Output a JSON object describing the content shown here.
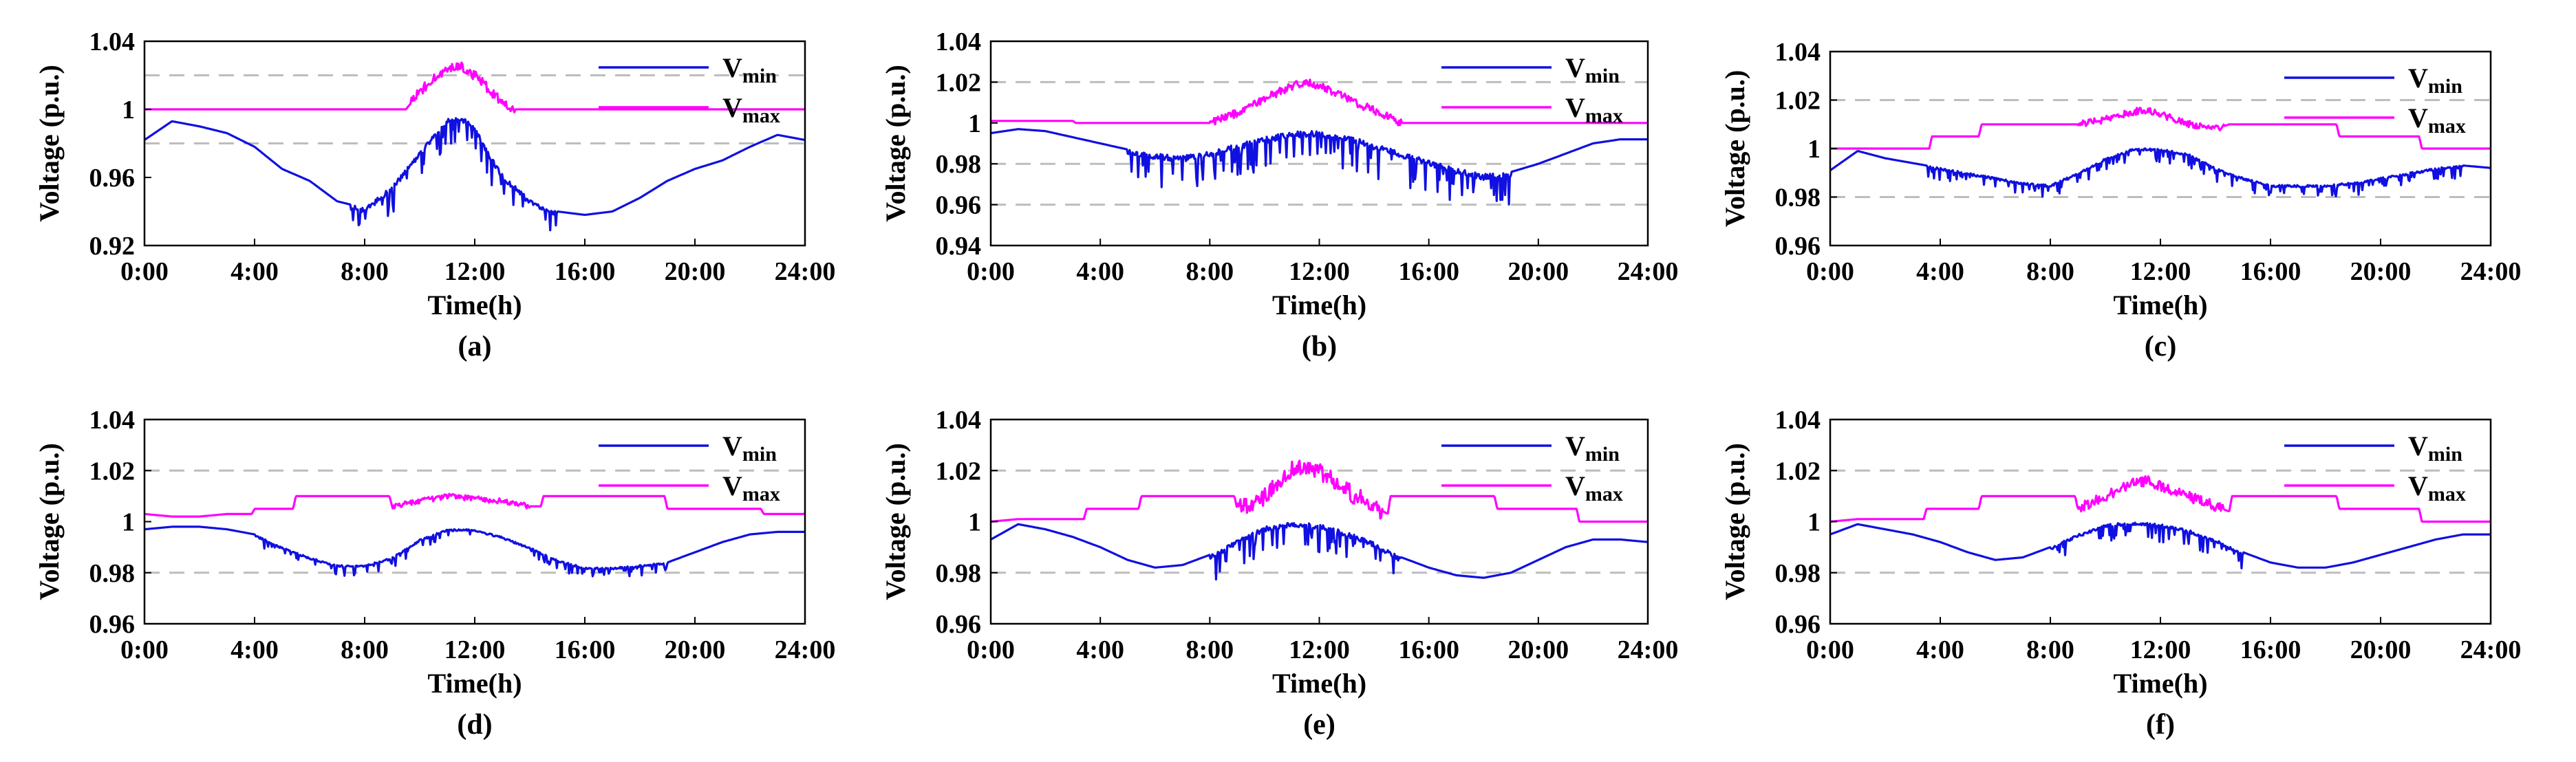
{
  "figure": {
    "series_colors": {
      "vmin": "#1010e0",
      "vmax": "#ff00ff",
      "ref": "#bdbdbd"
    }
  },
  "chart_data": [
    {
      "id": "a",
      "type": "line",
      "label": "(a)",
      "xlabel": "Time(h)",
      "ylabel": "Voltage (p.u.)",
      "xticks": [
        "0:00",
        "4:00",
        "8:00",
        "12:00",
        "16:00",
        "20:00",
        "24:00"
      ],
      "yticks": [
        "0.92",
        "0.96",
        "1",
        "1.04"
      ],
      "ytick_values": [
        0.92,
        0.96,
        1.0,
        1.04
      ],
      "ylim": [
        0.92,
        1.04
      ],
      "xlim": [
        0,
        24
      ],
      "ref_lines": [
        0.98,
        1.02
      ],
      "legend": [
        {
          "name": "V",
          "sub": "min"
        },
        {
          "name": "V",
          "sub": "max"
        }
      ],
      "series": [
        {
          "name": "Vmin",
          "x": [
            0,
            1,
            2,
            3,
            4,
            5,
            6,
            7,
            8,
            9,
            10,
            10.5,
            11,
            11.5,
            12,
            12.5,
            13,
            14,
            15,
            16,
            17,
            18,
            19,
            20,
            21,
            22,
            23,
            24
          ],
          "y": [
            0.982,
            0.993,
            0.99,
            0.986,
            0.978,
            0.965,
            0.958,
            0.946,
            0.942,
            0.955,
            0.975,
            0.985,
            0.995,
            0.996,
            0.99,
            0.975,
            0.962,
            0.947,
            0.94,
            0.938,
            0.94,
            0.948,
            0.958,
            0.965,
            0.97,
            0.978,
            0.985,
            0.982
          ],
          "noise": 0.012,
          "noise_range": [
            7.5,
            15
          ]
        },
        {
          "name": "Vmax",
          "x": [
            0,
            9.5,
            10,
            10.5,
            11,
            11.5,
            12,
            12.5,
            13,
            13.5,
            24
          ],
          "y": [
            1.0,
            1.0,
            1.01,
            1.018,
            1.023,
            1.025,
            1.02,
            1.012,
            1.004,
            1.0,
            1.0
          ],
          "noise": 0.006,
          "noise_range": [
            9.7,
            13.5
          ]
        }
      ]
    },
    {
      "id": "b",
      "type": "line",
      "label": "(b)",
      "xlabel": "Time(h)",
      "ylabel": "Voltage (p.u.)",
      "xticks": [
        "0:00",
        "4:00",
        "8:00",
        "12:00",
        "16:00",
        "20:00",
        "24:00"
      ],
      "yticks": [
        "0.94",
        "0.96",
        "0.98",
        "1",
        "1.02",
        "1.04"
      ],
      "ytick_values": [
        0.94,
        0.96,
        0.98,
        1.0,
        1.02,
        1.04
      ],
      "ylim": [
        0.94,
        1.04
      ],
      "xlim": [
        0,
        24
      ],
      "ref_lines": [
        0.96,
        0.98,
        1.02
      ],
      "legend": [
        {
          "name": "V",
          "sub": "min"
        },
        {
          "name": "V",
          "sub": "max"
        }
      ],
      "series": [
        {
          "name": "Vmin",
          "x": [
            0,
            1,
            2,
            3,
            4,
            5,
            6,
            7,
            8,
            9,
            10,
            11,
            12,
            13,
            14,
            15,
            16,
            17,
            18,
            19,
            20,
            21,
            22,
            23,
            24
          ],
          "y": [
            0.995,
            0.997,
            0.996,
            0.993,
            0.99,
            0.987,
            0.985,
            0.984,
            0.986,
            0.99,
            0.993,
            0.996,
            0.996,
            0.994,
            0.99,
            0.986,
            0.982,
            0.978,
            0.975,
            0.976,
            0.98,
            0.985,
            0.99,
            0.992,
            0.992
          ],
          "noise": 0.012,
          "noise_range": [
            5,
            19
          ]
        },
        {
          "name": "Vmax",
          "x": [
            0,
            3,
            3.1,
            8,
            9,
            10,
            11,
            11.5,
            12,
            13,
            14,
            15,
            15.1,
            24
          ],
          "y": [
            1.001,
            1.001,
            1.0,
            1.0,
            1.005,
            1.012,
            1.018,
            1.02,
            1.018,
            1.012,
            1.006,
            1.0,
            1.0,
            1.0
          ],
          "noise": 0.004,
          "noise_range": [
            8,
            15
          ]
        }
      ]
    },
    {
      "id": "c",
      "type": "line",
      "label": "(c)",
      "xlabel": "Time(h)",
      "ylabel": "Voltage (p.u.)",
      "xticks": [
        "0:00",
        "4:00",
        "8:00",
        "12:00",
        "16:00",
        "20:00",
        "24:00"
      ],
      "yticks": [
        "0.96",
        "0.98",
        "1",
        "1.02",
        "1.04"
      ],
      "ytick_values": [
        0.96,
        0.98,
        1.0,
        1.02,
        1.04
      ],
      "ylim": [
        0.96,
        1.04
      ],
      "xlim": [
        0,
        24
      ],
      "ref_lines": [
        0.98,
        1.02
      ],
      "legend": [
        {
          "name": "V",
          "sub": "min"
        },
        {
          "name": "V",
          "sub": "max"
        }
      ],
      "series": [
        {
          "name": "Vmin",
          "x": [
            0,
            1,
            2,
            3,
            4,
            5,
            6,
            7,
            8,
            9,
            10,
            11,
            12,
            13,
            14,
            15,
            16,
            17,
            18,
            19,
            20,
            21,
            22,
            23,
            24
          ],
          "y": [
            0.991,
            0.999,
            0.996,
            0.994,
            0.992,
            0.99,
            0.988,
            0.986,
            0.985,
            0.99,
            0.996,
            1.0,
            1.0,
            0.998,
            0.992,
            0.988,
            0.985,
            0.985,
            0.985,
            0.986,
            0.988,
            0.99,
            0.992,
            0.993,
            0.992
          ],
          "noise": 0.004,
          "noise_range": [
            3.5,
            23
          ]
        },
        {
          "name": "Vmax",
          "x": [
            0,
            1,
            2,
            3,
            3.6,
            3.7,
            5.4,
            5.5,
            9,
            10,
            11,
            11.5,
            12,
            13,
            14,
            14.5,
            18.4,
            18.5,
            21.4,
            21.5,
            24
          ],
          "y": [
            1.0,
            1.0,
            1.0,
            1.0,
            1.0,
            1.005,
            1.005,
            1.01,
            1.01,
            1.012,
            1.015,
            1.016,
            1.014,
            1.01,
            1.008,
            1.01,
            1.01,
            1.005,
            1.005,
            1.0,
            1.0
          ],
          "noise": 0.003,
          "noise_range": [
            9,
            14.3
          ]
        }
      ]
    },
    {
      "id": "d",
      "type": "line",
      "label": "(d)",
      "xlabel": "Time(h)",
      "ylabel": "Voltage (p.u.)",
      "xticks": [
        "0:00",
        "4:00",
        "8:00",
        "12:00",
        "16:00",
        "20:00",
        "24:00"
      ],
      "yticks": [
        "0.96",
        "0.98",
        "1",
        "1.02",
        "1.04"
      ],
      "ytick_values": [
        0.96,
        0.98,
        1.0,
        1.02,
        1.04
      ],
      "ylim": [
        0.96,
        1.04
      ],
      "xlim": [
        0,
        24
      ],
      "ref_lines": [
        0.98,
        1.02
      ],
      "legend": [
        {
          "name": "V",
          "sub": "min"
        },
        {
          "name": "V",
          "sub": "max"
        }
      ],
      "series": [
        {
          "name": "Vmin",
          "x": [
            0,
            1,
            2,
            3,
            4,
            5,
            6,
            7,
            8,
            9,
            10,
            11,
            12,
            13,
            14,
            15,
            16,
            17,
            18,
            19,
            20,
            21,
            22,
            23,
            24
          ],
          "y": [
            0.997,
            0.998,
            0.998,
            0.997,
            0.995,
            0.99,
            0.986,
            0.983,
            0.983,
            0.986,
            0.993,
            0.997,
            0.997,
            0.994,
            0.99,
            0.985,
            0.982,
            0.982,
            0.983,
            0.984,
            0.988,
            0.992,
            0.995,
            0.996,
            0.996
          ],
          "noise": 0.003,
          "noise_range": [
            4,
            19
          ]
        },
        {
          "name": "Vmax",
          "x": [
            0,
            1,
            2,
            3,
            3.9,
            4,
            5.4,
            5.5,
            8.9,
            9,
            10,
            11,
            12,
            13,
            14,
            14.4,
            14.5,
            18.9,
            19,
            22.4,
            22.5,
            24
          ],
          "y": [
            1.003,
            1.002,
            1.002,
            1.003,
            1.003,
            1.005,
            1.005,
            1.01,
            1.01,
            1.006,
            1.008,
            1.01,
            1.009,
            1.008,
            1.006,
            1.006,
            1.01,
            1.01,
            1.005,
            1.005,
            1.003,
            1.003
          ],
          "noise": 0.002,
          "noise_range": [
            9,
            14
          ]
        }
      ]
    },
    {
      "id": "e",
      "type": "line",
      "label": "(e)",
      "xlabel": "Time(h)",
      "ylabel": "Voltage (p.u.)",
      "xticks": [
        "0:00",
        "4:00",
        "8:00",
        "12:00",
        "16:00",
        "20:00",
        "24:00"
      ],
      "yticks": [
        "0.96",
        "0.98",
        "1",
        "1.02",
        "1.04"
      ],
      "ytick_values": [
        0.96,
        0.98,
        1.0,
        1.02,
        1.04
      ],
      "ylim": [
        0.96,
        1.04
      ],
      "xlim": [
        0,
        24
      ],
      "ref_lines": [
        0.98,
        1.02
      ],
      "legend": [
        {
          "name": "V",
          "sub": "min"
        },
        {
          "name": "V",
          "sub": "max"
        }
      ],
      "series": [
        {
          "name": "Vmin",
          "x": [
            0,
            1,
            2,
            3,
            4,
            5,
            6,
            7,
            8,
            9,
            10,
            11,
            12,
            13,
            14,
            15,
            16,
            17,
            18,
            19,
            20,
            21,
            22,
            23,
            24
          ],
          "y": [
            0.993,
            0.999,
            0.997,
            0.994,
            0.99,
            0.985,
            0.982,
            0.983,
            0.987,
            0.993,
            0.998,
            1.0,
            0.999,
            0.996,
            0.992,
            0.986,
            0.982,
            0.979,
            0.978,
            0.98,
            0.985,
            0.99,
            0.993,
            0.993,
            0.992
          ],
          "noise": 0.008,
          "noise_range": [
            8,
            15
          ]
        },
        {
          "name": "Vmax",
          "x": [
            0,
            1,
            3.4,
            3.5,
            5.4,
            5.5,
            8.9,
            9,
            10,
            11,
            11.5,
            12,
            13,
            14,
            14.5,
            14.6,
            18.4,
            18.5,
            21.4,
            21.5,
            24
          ],
          "y": [
            1.0,
            1.001,
            1.001,
            1.005,
            1.005,
            1.01,
            1.01,
            1.005,
            1.01,
            1.02,
            1.022,
            1.02,
            1.012,
            1.006,
            1.003,
            1.01,
            1.01,
            1.005,
            1.005,
            1.0,
            1.0
          ],
          "noise": 0.007,
          "noise_range": [
            9,
            14.3
          ]
        }
      ]
    },
    {
      "id": "f",
      "type": "line",
      "label": "(f)",
      "xlabel": "Time(h)",
      "ylabel": "Voltage (p.u.)",
      "xticks": [
        "0:00",
        "4:00",
        "8:00",
        "12:00",
        "16:00",
        "20:00",
        "24:00"
      ],
      "yticks": [
        "0.96",
        "0.98",
        "1",
        "1.02",
        "1.04"
      ],
      "ytick_values": [
        0.96,
        0.98,
        1.0,
        1.02,
        1.04
      ],
      "ylim": [
        0.96,
        1.04
      ],
      "xlim": [
        0,
        24
      ],
      "ref_lines": [
        0.98,
        1.02
      ],
      "legend": [
        {
          "name": "V",
          "sub": "min"
        },
        {
          "name": "V",
          "sub": "max"
        }
      ],
      "series": [
        {
          "name": "Vmin",
          "x": [
            0,
            1,
            2,
            3,
            4,
            5,
            6,
            7,
            8,
            9,
            10,
            11,
            12,
            13,
            14,
            15,
            16,
            17,
            18,
            19,
            20,
            21,
            22,
            23,
            24
          ],
          "y": [
            0.995,
            0.999,
            0.997,
            0.995,
            0.992,
            0.988,
            0.985,
            0.986,
            0.99,
            0.995,
            0.999,
            1.0,
            0.999,
            0.997,
            0.993,
            0.988,
            0.984,
            0.982,
            0.982,
            0.984,
            0.987,
            0.99,
            0.993,
            0.995,
            0.995
          ],
          "noise": 0.005,
          "noise_range": [
            8,
            15
          ]
        },
        {
          "name": "Vmax",
          "x": [
            0,
            1,
            3.4,
            3.5,
            5.4,
            5.5,
            8.9,
            9,
            10,
            11,
            11.5,
            12,
            13,
            14,
            14.5,
            14.6,
            18.4,
            18.5,
            21.4,
            21.5,
            24
          ],
          "y": [
            1.0,
            1.001,
            1.001,
            1.005,
            1.005,
            1.01,
            1.01,
            1.005,
            1.01,
            1.015,
            1.016,
            1.014,
            1.01,
            1.006,
            1.004,
            1.01,
            1.01,
            1.005,
            1.005,
            1.0,
            1.0
          ],
          "noise": 0.004,
          "noise_range": [
            9,
            14.3
          ]
        }
      ]
    }
  ]
}
